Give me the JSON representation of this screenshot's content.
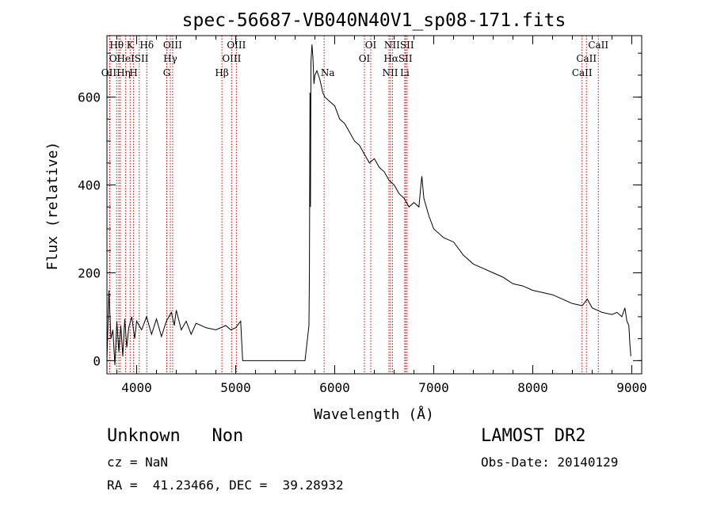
{
  "chart_data": {
    "type": "line",
    "title": "spec-56687-VB040N40V1_sp08-171.fits",
    "xlabel": "Wavelength (Å)",
    "ylabel": "Flux (relative)",
    "xlim": [
      3700,
      9100
    ],
    "ylim": [
      -30,
      740
    ],
    "x_ticks": [
      4000,
      5000,
      6000,
      7000,
      8000,
      9000
    ],
    "y_ticks": [
      0,
      200,
      400,
      600
    ],
    "x_tick_labels": [
      "4000",
      "5000",
      "6000",
      "7000",
      "8000",
      "9000"
    ],
    "y_tick_labels": [
      "0",
      "200",
      "400",
      "600"
    ],
    "grid": false,
    "line_color": "#000000",
    "marker_color": "#cc0000",
    "series": [
      {
        "x": [
          3700,
          3720,
          3740,
          3760,
          3780,
          3800,
          3820,
          3840,
          3860,
          3880,
          3900,
          3920,
          3950,
          3980,
          4000,
          4050,
          4100,
          4150,
          4200,
          4250,
          4300,
          4350,
          4380,
          4400,
          4450,
          4500,
          4550,
          4600,
          4700,
          4800,
          4900,
          4950,
          5000,
          5050,
          5070,
          5700,
          5740,
          5745,
          5750,
          5755,
          5760,
          5770,
          5780,
          5790,
          5800,
          5820,
          5850,
          5880,
          5900,
          5950,
          6000,
          6050,
          6100,
          6150,
          6200,
          6250,
          6300,
          6350,
          6400,
          6450,
          6500,
          6550,
          6600,
          6650,
          6700,
          6750,
          6800,
          6850,
          6870,
          6880,
          6900,
          6950,
          7000,
          7100,
          7200,
          7300,
          7400,
          7500,
          7600,
          7700,
          7800,
          7900,
          8000,
          8100,
          8200,
          8300,
          8400,
          8500,
          8550,
          8600,
          8700,
          8800,
          8850,
          8900,
          8930,
          8950,
          8970,
          8980,
          8990
        ],
        "y": [
          0,
          160,
          50,
          70,
          -10,
          90,
          20,
          80,
          10,
          95,
          30,
          75,
          100,
          50,
          90,
          70,
          100,
          60,
          95,
          55,
          90,
          110,
          80,
          115,
          70,
          90,
          60,
          85,
          75,
          70,
          80,
          70,
          75,
          90,
          0,
          0,
          80,
          210,
          610,
          350,
          680,
          720,
          690,
          630,
          650,
          660,
          640,
          610,
          600,
          590,
          580,
          550,
          540,
          520,
          500,
          490,
          470,
          450,
          460,
          440,
          430,
          410,
          400,
          380,
          370,
          350,
          360,
          350,
          400,
          420,
          370,
          330,
          300,
          280,
          270,
          240,
          220,
          210,
          200,
          190,
          175,
          170,
          160,
          155,
          150,
          140,
          130,
          125,
          140,
          120,
          110,
          105,
          110,
          100,
          120,
          90,
          80,
          40,
          10
        ]
      }
    ],
    "lines": [
      {
        "wl": 3727,
        "label": "OII"
      },
      {
        "wl": 3729,
        "label": "OII"
      },
      {
        "wl": 3798,
        "label": "Hθ"
      },
      {
        "wl": 3820,
        "label": "OI"
      },
      {
        "wl": 3835,
        "label": "Hη"
      },
      {
        "wl": 3889,
        "label": "HeI"
      },
      {
        "wl": 3934,
        "label": "K"
      },
      {
        "wl": 3969,
        "label": "H"
      },
      {
        "wl": 4026,
        "label": "SII"
      },
      {
        "wl": 4102,
        "label": "Hδ"
      },
      {
        "wl": 4304,
        "label": "G"
      },
      {
        "wl": 4340,
        "label": "Hγ"
      },
      {
        "wl": 4363,
        "label": "OIII"
      },
      {
        "wl": 4861,
        "label": "Hβ"
      },
      {
        "wl": 4959,
        "label": "OIII"
      },
      {
        "wl": 5007,
        "label": "OIII"
      },
      {
        "wl": 5893,
        "label": "Na"
      },
      {
        "wl": 6300,
        "label": "OI"
      },
      {
        "wl": 6364,
        "label": "OI"
      },
      {
        "wl": 6548,
        "label": "NII"
      },
      {
        "wl": 6563,
        "label": "Hα"
      },
      {
        "wl": 6583,
        "label": "NII"
      },
      {
        "wl": 6707,
        "label": "Li"
      },
      {
        "wl": 6717,
        "label": "SII"
      },
      {
        "wl": 6731,
        "label": "SII"
      },
      {
        "wl": 8498,
        "label": "CaII"
      },
      {
        "wl": 8542,
        "label": "CaII"
      },
      {
        "wl": 8662,
        "label": "CaII"
      }
    ],
    "label_rows": [
      [
        {
          "text": "Hθ",
          "wl": 3798
        },
        {
          "text": "K",
          "wl": 3934
        },
        {
          "text": "Hδ",
          "wl": 4102
        },
        {
          "text": "OIII",
          "wl": 4363
        },
        {
          "text": "OIII",
          "wl": 5007
        },
        {
          "text": "OI",
          "wl": 6364
        },
        {
          "text": "NIISII",
          "wl": 6650
        },
        {
          "text": "CaII",
          "wl": 8662
        }
      ],
      [
        {
          "text": "OI",
          "wl": 3780
        },
        {
          "text": "HeISII",
          "wl": 3960
        },
        {
          "text": "Hγ",
          "wl": 4340
        },
        {
          "text": "OIII",
          "wl": 4959
        },
        {
          "text": "OI",
          "wl": 6300
        },
        {
          "text": "HαSII",
          "wl": 6640
        },
        {
          "text": "CaII",
          "wl": 8542
        }
      ],
      [
        {
          "text": "OIIHη",
          "wl": 3790
        },
        {
          "text": "H",
          "wl": 3969
        },
        {
          "text": "G",
          "wl": 4304
        },
        {
          "text": "Hβ",
          "wl": 4861
        },
        {
          "text": "Na",
          "wl": 5930
        },
        {
          "text": "NII",
          "wl": 6560
        },
        {
          "text": "Li",
          "wl": 6707
        },
        {
          "text": "CaII",
          "wl": 8498
        }
      ]
    ]
  },
  "info": {
    "class_line": "Unknown   Non",
    "cz_line": "cz = NaN",
    "coords_line": "RA =  41.23466, DEC =  39.28932",
    "survey": "LAMOST DR2",
    "obs_date": "Obs-Date: 20140129"
  }
}
